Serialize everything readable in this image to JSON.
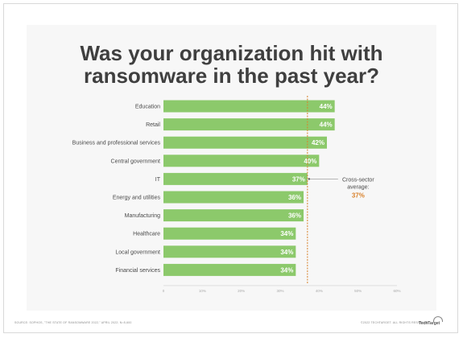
{
  "chart_data": {
    "type": "bar",
    "orientation": "horizontal",
    "title_line1": "Was your organization hit with",
    "title_line2": "ransomware in the past year?",
    "categories": [
      "Education",
      "Retail",
      "Business and professional services",
      "Central government",
      "IT",
      "Energy and utilities",
      "Manufacturing",
      "Healthcare",
      "Local government",
      "Financial services"
    ],
    "values": [
      44,
      44,
      42,
      40,
      37,
      36,
      36,
      34,
      34,
      34
    ],
    "value_labels": [
      "44%",
      "44%",
      "42%",
      "40%",
      "37%",
      "36%",
      "36%",
      "34%",
      "34%",
      "34%"
    ],
    "xlim": [
      0,
      60
    ],
    "xticks": [
      0,
      10,
      20,
      30,
      40,
      50,
      60
    ],
    "xtick_labels": [
      "0",
      "10%",
      "20%",
      "30%",
      "40%",
      "50%",
      "60%"
    ],
    "reference_line": {
      "value": 37,
      "label_line1": "Cross-sector",
      "label_line2": "average:",
      "value_label": "37%"
    },
    "colors": {
      "bar": "#8cc96b",
      "bar_label": "#ffffff",
      "reference": "#d9822b",
      "title": "#3f3f3f",
      "category": "#4a4a4a",
      "tick": "#aaaaaa",
      "axis": "#cfcfcf"
    },
    "grid": false,
    "legend": "none"
  },
  "footer": {
    "source": "SOURCE: SOPHOS, \"THE STATE OF RANSOMWARE 2022,\" APRIL 2022; N=5,600",
    "copyright": "©2022 TECHTARGET. ALL RIGHTS RESERVED.",
    "logo_text": "TechTarget"
  }
}
